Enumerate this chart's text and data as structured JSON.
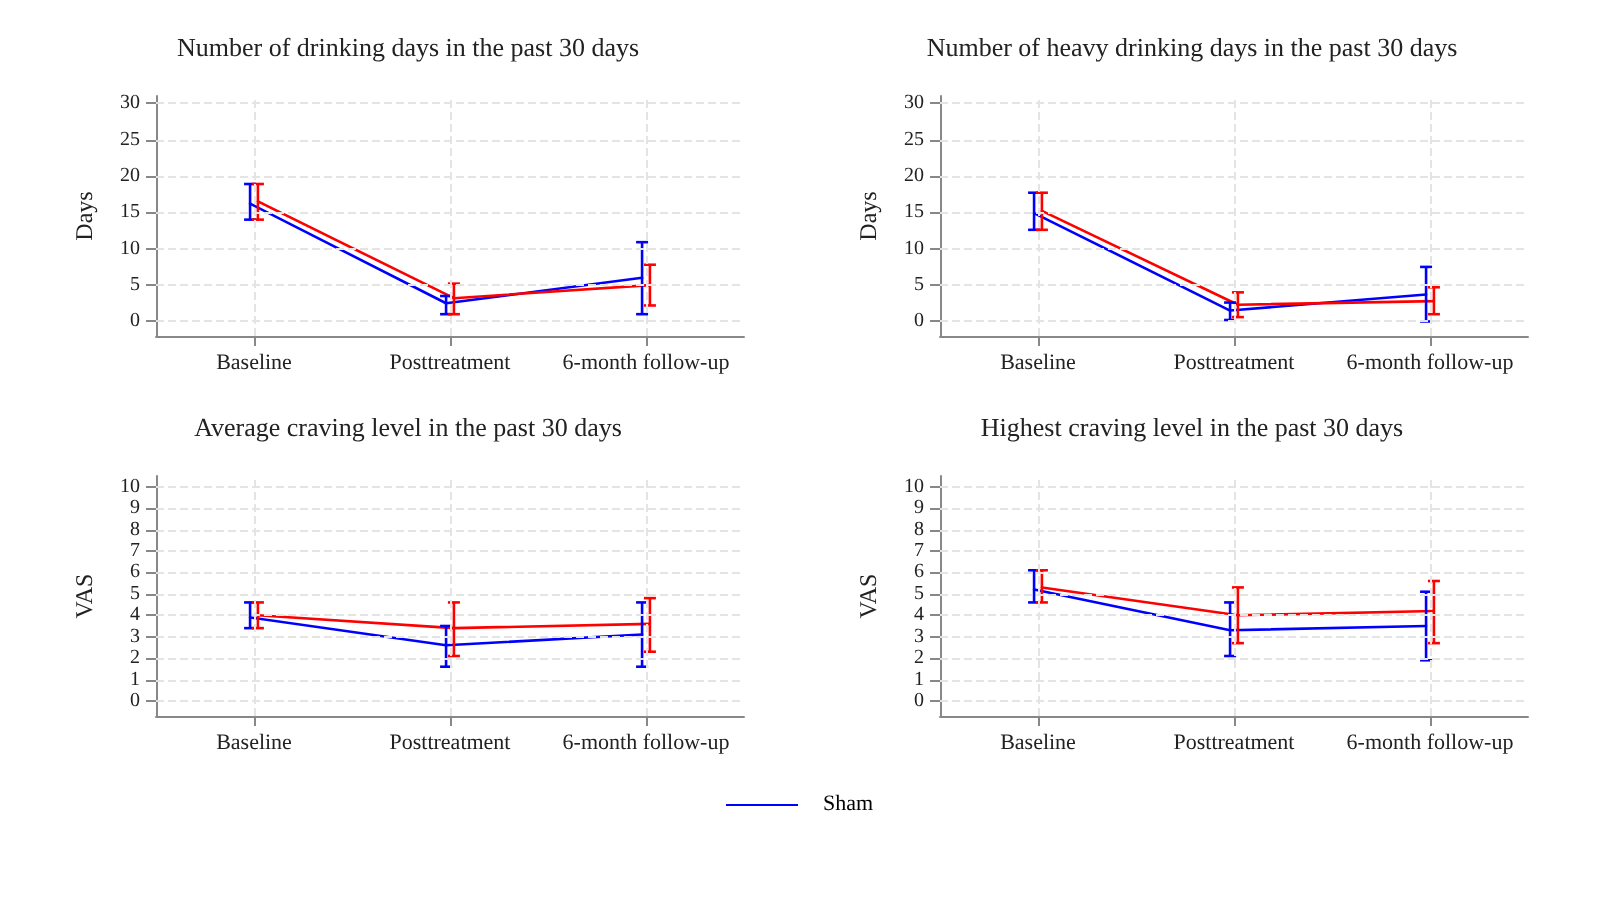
{
  "chart_data": [
    {
      "type": "line",
      "title": "Number of drinking days in the past 30 days",
      "ylabel": "Days",
      "categories": [
        "Baseline",
        "Posttreatment",
        "6-month follow-up"
      ],
      "ylim": [
        -2,
        31
      ],
      "yticks": [
        0,
        5,
        10,
        15,
        20,
        25,
        30
      ],
      "grid": true,
      "legend": "bottom",
      "marker": "none",
      "line_style": "solid",
      "series": [
        {
          "name": "Sham",
          "color": "#0000ff",
          "values": [
            16.2,
            2.5,
            6
          ],
          "errors": [
            [
              14,
              18.9
            ],
            [
              1,
              3.5
            ],
            [
              1,
              10.9
            ]
          ]
        },
        {
          "color": "#ff0000",
          "values": [
            16.5,
            3.2,
            5
          ],
          "errors": [
            [
              14,
              18.9
            ],
            [
              1,
              5.2
            ],
            [
              2.2,
              7.8
            ]
          ]
        }
      ]
    },
    {
      "type": "line",
      "title": "Number of heavy drinking days in the past 30 days",
      "ylabel": "Days",
      "categories": [
        "Baseline",
        "Posttreatment",
        "6-month follow-up"
      ],
      "ylim": [
        -2,
        31
      ],
      "yticks": [
        0,
        5,
        10,
        15,
        20,
        25,
        30
      ],
      "grid": true,
      "marker": "none",
      "line_style": "solid",
      "series": [
        {
          "name": "Sham",
          "color": "#0000ff",
          "values": [
            14.9,
            1.5,
            3.7
          ],
          "errors": [
            [
              12.6,
              17.7
            ],
            [
              0.2,
              2.6
            ],
            [
              0,
              7.5
            ]
          ]
        },
        {
          "color": "#ff0000",
          "values": [
            15.2,
            2.3,
            2.8
          ],
          "errors": [
            [
              12.6,
              17.7
            ],
            [
              0.6,
              4
            ],
            [
              1,
              4.7
            ]
          ]
        }
      ]
    },
    {
      "type": "line",
      "title": "Average craving level in the past 30 days",
      "ylabel": "VAS",
      "categories": [
        "Baseline",
        "Posttreatment",
        "6-month follow-up"
      ],
      "ylim": [
        -0.7,
        10.5
      ],
      "yticks": [
        0,
        1,
        2,
        3,
        4,
        5,
        6,
        7,
        8,
        9,
        10
      ],
      "grid": true,
      "marker": "none",
      "line_style": "solid",
      "series": [
        {
          "name": "Sham",
          "color": "#0000ff",
          "values": [
            3.9,
            2.6,
            3.1
          ],
          "errors": [
            [
              3.4,
              4.6
            ],
            [
              1.6,
              3.5
            ],
            [
              1.6,
              4.6
            ]
          ]
        },
        {
          "color": "#ff0000",
          "values": [
            4.0,
            3.4,
            3.6
          ],
          "errors": [
            [
              3.4,
              4.6
            ],
            [
              2.1,
              4.6
            ],
            [
              2.3,
              4.8
            ]
          ]
        }
      ]
    },
    {
      "type": "line",
      "title": "Highest craving level in the past 30 days",
      "ylabel": "VAS",
      "categories": [
        "Baseline",
        "Posttreatment",
        "6-month follow-up"
      ],
      "ylim": [
        -0.7,
        10.5
      ],
      "yticks": [
        0,
        1,
        2,
        3,
        4,
        5,
        6,
        7,
        8,
        9,
        10
      ],
      "grid": true,
      "marker": "none",
      "line_style": "solid",
      "series": [
        {
          "name": "Sham",
          "color": "#0000ff",
          "values": [
            5.2,
            3.3,
            3.5
          ],
          "errors": [
            [
              4.6,
              6.1
            ],
            [
              2.1,
              4.6
            ],
            [
              1.9,
              5.1
            ]
          ]
        },
        {
          "color": "#ff0000",
          "values": [
            5.3,
            4.0,
            4.2
          ],
          "errors": [
            [
              4.6,
              6.1
            ],
            [
              2.7,
              5.3
            ],
            [
              2.7,
              5.6
            ]
          ]
        }
      ]
    }
  ]
}
